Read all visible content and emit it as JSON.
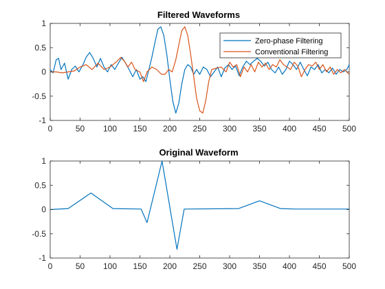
{
  "chart_data": [
    {
      "type": "line",
      "title": "Filtered Waveforms",
      "xlabel": "",
      "ylabel": "",
      "xlim": [
        0,
        500
      ],
      "ylim": [
        -1,
        1
      ],
      "xticks": [
        0,
        50,
        100,
        150,
        200,
        250,
        300,
        350,
        400,
        450,
        500
      ],
      "yticks": [
        -1,
        -0.5,
        0,
        0.5,
        1
      ],
      "grid": false,
      "legend_placement": "top-right",
      "series": [
        {
          "name": "Zero-phase Filtering",
          "color": "#0072BD",
          "points": [
            [
              0,
              0.05
            ],
            [
              5,
              -0.02
            ],
            [
              10,
              0.25
            ],
            [
              14,
              0.28
            ],
            [
              18,
              0.05
            ],
            [
              24,
              0.18
            ],
            [
              30,
              -0.15
            ],
            [
              36,
              0.05
            ],
            [
              42,
              0.12
            ],
            [
              48,
              0.0
            ],
            [
              55,
              0.15
            ],
            [
              60,
              0.3
            ],
            [
              66,
              0.4
            ],
            [
              72,
              0.28
            ],
            [
              78,
              0.1
            ],
            [
              84,
              0.28
            ],
            [
              90,
              0.1
            ],
            [
              96,
              0.0
            ],
            [
              102,
              0.15
            ],
            [
              108,
              0.05
            ],
            [
              114,
              0.18
            ],
            [
              120,
              0.3
            ],
            [
              126,
              0.18
            ],
            [
              132,
              0.05
            ],
            [
              138,
              -0.1
            ],
            [
              144,
              0.05
            ],
            [
              150,
              -0.15
            ],
            [
              155,
              -0.1
            ],
            [
              160,
              -0.2
            ],
            [
              165,
              0.05
            ],
            [
              170,
              0.3
            ],
            [
              175,
              0.6
            ],
            [
              180,
              0.88
            ],
            [
              185,
              0.93
            ],
            [
              190,
              0.75
            ],
            [
              195,
              0.35
            ],
            [
              200,
              -0.15
            ],
            [
              205,
              -0.6
            ],
            [
              210,
              -0.85
            ],
            [
              215,
              -0.65
            ],
            [
              220,
              -0.25
            ],
            [
              225,
              0.05
            ],
            [
              230,
              0.15
            ],
            [
              235,
              0.1
            ],
            [
              240,
              -0.05
            ],
            [
              245,
              0.05
            ],
            [
              250,
              -0.05
            ],
            [
              256,
              0.1
            ],
            [
              262,
              0.05
            ],
            [
              268,
              -0.1
            ],
            [
              274,
              0.0
            ],
            [
              280,
              0.1
            ],
            [
              286,
              -0.1
            ],
            [
              292,
              0.08
            ],
            [
              298,
              0.15
            ],
            [
              304,
              0.05
            ],
            [
              310,
              0.12
            ],
            [
              316,
              -0.08
            ],
            [
              322,
              0.1
            ],
            [
              328,
              0.22
            ],
            [
              334,
              0.15
            ],
            [
              340,
              0.22
            ],
            [
              346,
              0.28
            ],
            [
              352,
              0.22
            ],
            [
              358,
              0.12
            ],
            [
              364,
              0.2
            ],
            [
              370,
              0.05
            ],
            [
              376,
              -0.02
            ],
            [
              382,
              0.1
            ],
            [
              388,
              -0.05
            ],
            [
              394,
              0.05
            ],
            [
              400,
              0.22
            ],
            [
              406,
              0.15
            ],
            [
              412,
              0.05
            ],
            [
              418,
              0.2
            ],
            [
              424,
              0.05
            ],
            [
              430,
              -0.08
            ],
            [
              436,
              0.1
            ],
            [
              442,
              0.05
            ],
            [
              448,
              0.15
            ],
            [
              454,
              -0.02
            ],
            [
              460,
              0.05
            ],
            [
              466,
              -0.02
            ],
            [
              472,
              0.08
            ],
            [
              478,
              -0.05
            ],
            [
              484,
              0.05
            ],
            [
              490,
              0.0
            ],
            [
              496,
              0.05
            ],
            [
              500,
              0.15
            ]
          ]
        },
        {
          "name": "Conventional Filtering",
          "color": "#D95319",
          "points": [
            [
              0,
              0.0
            ],
            [
              10,
              0.0
            ],
            [
              20,
              -0.02
            ],
            [
              30,
              0.0
            ],
            [
              40,
              0.02
            ],
            [
              50,
              0.1
            ],
            [
              60,
              0.15
            ],
            [
              70,
              0.05
            ],
            [
              80,
              0.18
            ],
            [
              90,
              0.05
            ],
            [
              100,
              0.1
            ],
            [
              110,
              0.2
            ],
            [
              118,
              0.3
            ],
            [
              124,
              0.22
            ],
            [
              130,
              0.1
            ],
            [
              136,
              0.2
            ],
            [
              142,
              0.05
            ],
            [
              150,
              0.0
            ],
            [
              156,
              -0.2
            ],
            [
              162,
              0.0
            ],
            [
              170,
              0.1
            ],
            [
              178,
              0.05
            ],
            [
              186,
              -0.05
            ],
            [
              192,
              -0.05
            ],
            [
              198,
              0.05
            ],
            [
              204,
              0.0
            ],
            [
              210,
              0.25
            ],
            [
              215,
              0.55
            ],
            [
              220,
              0.85
            ],
            [
              225,
              0.93
            ],
            [
              230,
              0.75
            ],
            [
              235,
              0.35
            ],
            [
              240,
              -0.1
            ],
            [
              245,
              -0.55
            ],
            [
              250,
              -0.8
            ],
            [
              255,
              -0.85
            ],
            [
              260,
              -0.6
            ],
            [
              265,
              -0.2
            ],
            [
              270,
              0.05
            ],
            [
              278,
              0.08
            ],
            [
              286,
              0.1
            ],
            [
              294,
              0.0
            ],
            [
              300,
              0.2
            ],
            [
              306,
              0.1
            ],
            [
              312,
              0.15
            ],
            [
              318,
              -0.1
            ],
            [
              324,
              0.1
            ],
            [
              330,
              0.0
            ],
            [
              336,
              0.15
            ],
            [
              342,
              0.0
            ],
            [
              348,
              0.2
            ],
            [
              354,
              0.1
            ],
            [
              360,
              0.18
            ],
            [
              366,
              0.05
            ],
            [
              372,
              0.15
            ],
            [
              378,
              0.1
            ],
            [
              384,
              0.25
            ],
            [
              390,
              0.15
            ],
            [
              396,
              0.1
            ],
            [
              402,
              0.05
            ],
            [
              408,
              0.2
            ],
            [
              414,
              0.12
            ],
            [
              420,
              -0.1
            ],
            [
              426,
              0.05
            ],
            [
              432,
              0.15
            ],
            [
              438,
              0.12
            ],
            [
              444,
              0.2
            ],
            [
              450,
              0.05
            ],
            [
              456,
              0.15
            ],
            [
              462,
              0.0
            ],
            [
              468,
              0.1
            ],
            [
              474,
              -0.05
            ],
            [
              480,
              0.05
            ],
            [
              486,
              -0.02
            ],
            [
              492,
              0.05
            ],
            [
              500,
              -0.05
            ]
          ]
        }
      ]
    },
    {
      "type": "line",
      "title": "Original Waveform",
      "xlabel": "",
      "ylabel": "",
      "xlim": [
        0,
        500
      ],
      "ylim": [
        -1,
        1
      ],
      "xticks": [
        0,
        50,
        100,
        150,
        200,
        250,
        300,
        350,
        400,
        450,
        500
      ],
      "yticks": [
        -1,
        -0.5,
        0,
        0.5,
        1
      ],
      "grid": false,
      "series": [
        {
          "color": "#0072BD",
          "points": [
            [
              0,
              0.0
            ],
            [
              30,
              0.02
            ],
            [
              68,
              0.34
            ],
            [
              105,
              0.02
            ],
            [
              152,
              0.01
            ],
            [
              162,
              -0.27
            ],
            [
              187,
              1.0
            ],
            [
              212,
              -0.82
            ],
            [
              224,
              0.01
            ],
            [
              315,
              0.02
            ],
            [
              350,
              0.18
            ],
            [
              385,
              0.02
            ],
            [
              410,
              0.01
            ],
            [
              500,
              0.01
            ]
          ]
        }
      ]
    }
  ]
}
